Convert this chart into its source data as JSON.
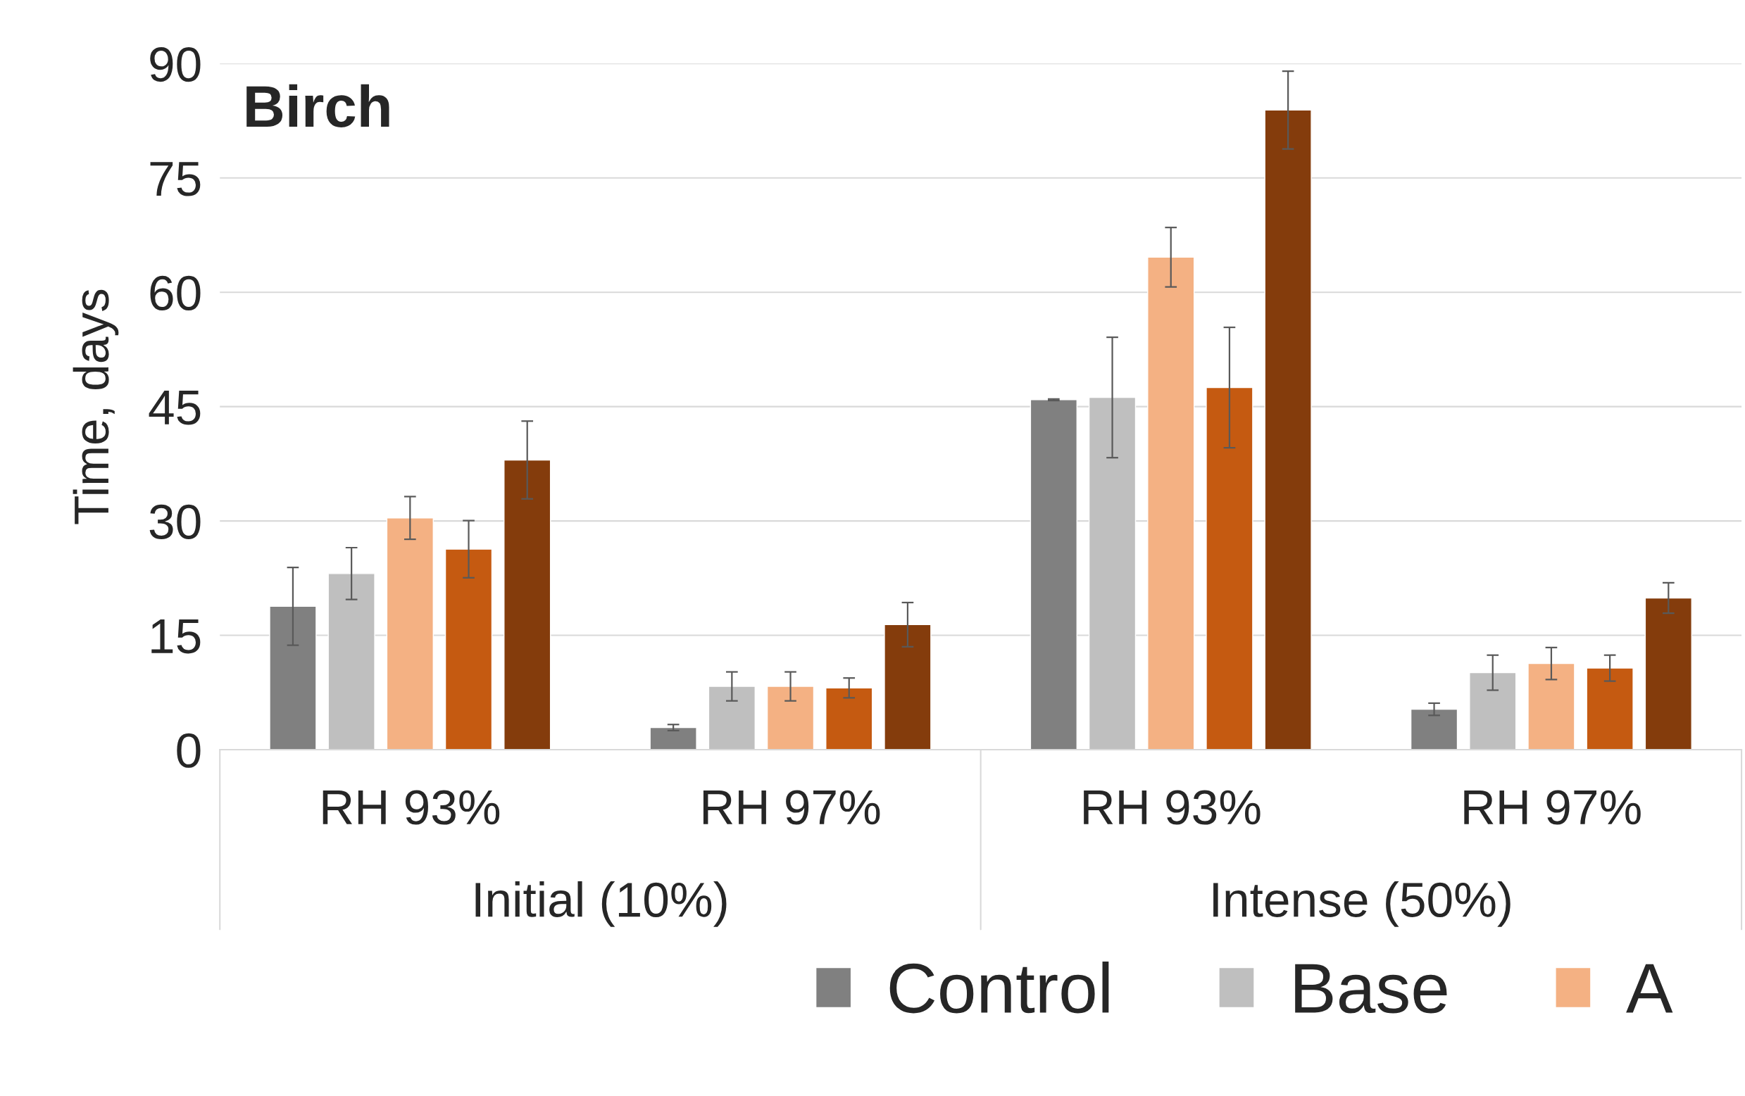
{
  "chart_data": {
    "type": "bar",
    "title": "Birch",
    "ylabel": "Time, days",
    "categories": [
      "RH 93%",
      "RH 97%",
      "RH 93%",
      "RH 97%"
    ],
    "annotations": [
      "Initial (10%)",
      "Intense (50%)"
    ],
    "series": [
      {
        "name": "Control",
        "color": "#808080",
        "values": [
          18.8,
          2.9,
          45.9,
          5.3
        ],
        "errors": [
          5.1,
          0.4,
          0.1,
          0.8
        ]
      },
      {
        "name": "Base",
        "color": "#bfbfbf",
        "values": [
          23.1,
          8.3,
          46.2,
          10.1
        ],
        "errors": [
          3.4,
          1.9,
          7.9,
          2.3
        ]
      },
      {
        "name": "A",
        "color": "#f4b183",
        "values": [
          30.4,
          8.3,
          64.6,
          11.3
        ],
        "errors": [
          2.8,
          1.9,
          3.9,
          2.1
        ]
      },
      {
        "color": "#c55a11",
        "values": [
          26.3,
          8.1,
          47.5,
          10.7
        ],
        "errors": [
          3.75,
          1.3,
          7.9,
          1.7
        ]
      },
      {
        "color": "#843c0c",
        "values": [
          38.0,
          16.4,
          83.9,
          19.9
        ],
        "errors": [
          5.1,
          2.9,
          5.1,
          2.0
        ]
      }
    ],
    "ylim": [
      0,
      90
    ],
    "yticks": [
      0,
      15,
      30,
      45,
      60,
      75,
      90
    ],
    "grid": "y",
    "legend": "bottom"
  }
}
